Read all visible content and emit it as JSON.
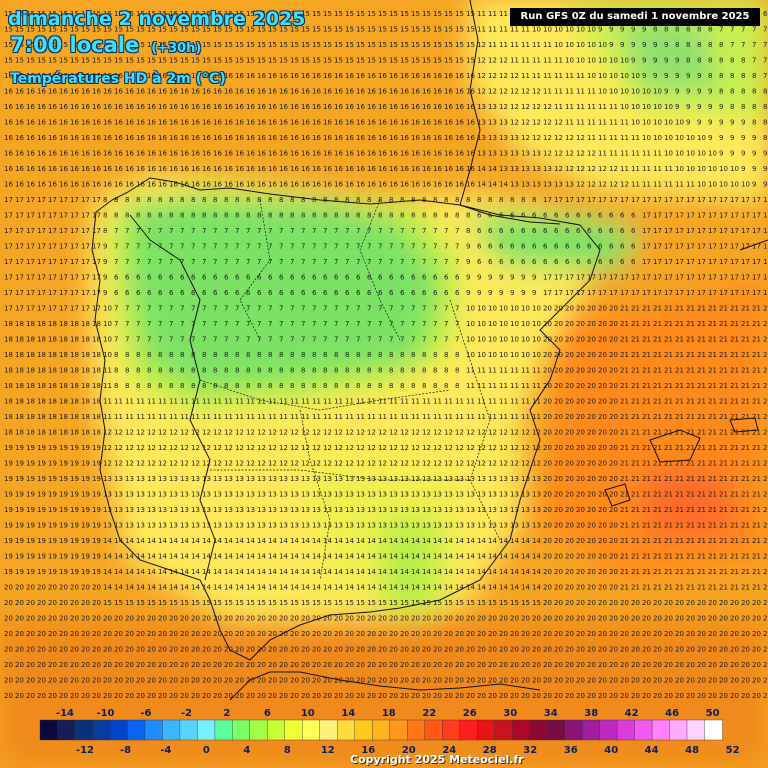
{
  "header": {
    "date": "dimanche 2 novembre 2025",
    "time": "7:00 locale",
    "lead": "(+30h)",
    "parameter": "Températures HD à 2m (°C)",
    "run": "Run GFS 0Z du samedi 1 novembre 2025"
  },
  "legend": {
    "top_labels": [
      "-14",
      "-10",
      "-6",
      "-2",
      "2",
      "6",
      "10",
      "14",
      "18",
      "22",
      "26",
      "30",
      "34",
      "38",
      "42",
      "46",
      "50"
    ],
    "bottom_labels": [
      "-12",
      "-8",
      "-4",
      "0",
      "4",
      "8",
      "12",
      "16",
      "20",
      "24",
      "28",
      "32",
      "36",
      "40",
      "44",
      "48",
      "52"
    ],
    "colors": [
      "#0a0a3c",
      "#141e5a",
      "#0a3278",
      "#0a3ca0",
      "#0046c8",
      "#0a64f0",
      "#1e8cff",
      "#3cb4ff",
      "#5ad2ff",
      "#78f0ff",
      "#5aff9b",
      "#78ff64",
      "#a0ff46",
      "#c8ff32",
      "#f0ff32",
      "#ffff5a",
      "#fff078",
      "#ffdc3c",
      "#ffc81e",
      "#ffb41e",
      "#ff961e",
      "#ff7814",
      "#ff5a14",
      "#ff3c1e",
      "#ff1e1e",
      "#e61414",
      "#c8141e",
      "#aa0a28",
      "#8c0a32",
      "#780a46",
      "#8c1478",
      "#a01ea0",
      "#be28be",
      "#dc3cdc",
      "#f05af0",
      "#ff82ff",
      "#ffaaff",
      "#ffd2ff",
      "#ffffff"
    ]
  },
  "copyright": "Copyright 2025 Meteociel.fr"
}
